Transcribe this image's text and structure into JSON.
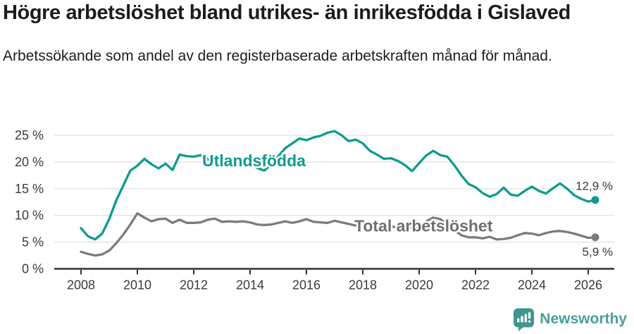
{
  "footer": {
    "brand": "Newsworthy"
  },
  "chart_data": {
    "type": "line",
    "title": "Högre arbetslöshet bland utrikes- än inrikesfödda i Gislaved",
    "subtitle": "Arbetssökande som andel av den registerbaserade arbetskraften månad för månad.",
    "xlabel": "",
    "ylabel": "",
    "x_unit": "decimal year (monthly data sampled quarterly)",
    "x_start": 2008,
    "x_step": 0.25,
    "xlim": [
      2007.05,
      2026.95
    ],
    "ylim": [
      0,
      29
    ],
    "grid": "horizontal",
    "legend_position": "inline-labels",
    "y_ticks": [
      {
        "value": 0,
        "label": "0 %"
      },
      {
        "value": 5,
        "label": "5 %"
      },
      {
        "value": 10,
        "label": "10 %"
      },
      {
        "value": 15,
        "label": "15 %"
      },
      {
        "value": 20,
        "label": "20 %"
      },
      {
        "value": 25,
        "label": "25 %"
      }
    ],
    "x_ticks": [
      {
        "value": 2008,
        "label": "2008"
      },
      {
        "value": 2010,
        "label": "2010"
      },
      {
        "value": 2012,
        "label": "2012"
      },
      {
        "value": 2014,
        "label": "2014"
      },
      {
        "value": 2016,
        "label": "2016"
      },
      {
        "value": 2018,
        "label": "2018"
      },
      {
        "value": 2020,
        "label": "2020"
      },
      {
        "value": 2022,
        "label": "2022"
      },
      {
        "value": 2024,
        "label": "2024"
      },
      {
        "value": 2026,
        "label": "2026"
      }
    ],
    "series": [
      {
        "name": "Utlandsfödda",
        "color": "#0e9b8f",
        "label_color": "#0e9b8f",
        "label_x": 2012.3,
        "label_y": 19.2,
        "end_dot": true,
        "end_label": "12,9 %",
        "end_label_side": "above",
        "values": [
          7.6,
          6.1,
          5.5,
          6.6,
          9.3,
          12.8,
          15.6,
          18.4,
          19.3,
          20.6,
          19.6,
          18.8,
          19.7,
          18.5,
          21.4,
          21.1,
          21.0,
          21.3,
          20.5,
          20.3,
          20.6,
          20.1,
          20.5,
          20.0,
          19.8,
          18.9,
          18.4,
          19.5,
          21.1,
          22.6,
          23.5,
          24.4,
          24.1,
          24.6,
          24.9,
          25.5,
          25.8,
          25.0,
          23.9,
          24.2,
          23.5,
          22.1,
          21.4,
          20.6,
          20.7,
          20.2,
          19.4,
          18.3,
          19.8,
          21.2,
          22.1,
          21.3,
          21.0,
          19.4,
          17.5,
          15.9,
          15.3,
          14.2,
          13.5,
          14.0,
          15.2,
          13.9,
          13.7,
          14.6,
          15.4,
          14.6,
          14.1,
          15.1,
          16.0,
          15.0,
          13.8,
          13.1,
          12.6,
          12.9
        ]
      },
      {
        "name": "Total arbetslöshet",
        "color": "#7b7b7b",
        "label_color": "#6f6f6f",
        "label_x": 2017.7,
        "label_y": 7.0,
        "end_dot": true,
        "end_label": "5,9 %",
        "end_label_side": "below",
        "values": [
          3.2,
          2.8,
          2.5,
          2.7,
          3.4,
          4.8,
          6.4,
          8.3,
          10.4,
          9.6,
          8.9,
          9.3,
          9.4,
          8.6,
          9.2,
          8.6,
          8.6,
          8.7,
          9.2,
          9.4,
          8.8,
          8.9,
          8.8,
          8.9,
          8.7,
          8.3,
          8.2,
          8.3,
          8.6,
          8.9,
          8.6,
          8.9,
          9.3,
          8.8,
          8.7,
          8.6,
          9.0,
          8.7,
          8.4,
          8.1,
          8.2,
          8.0,
          7.9,
          7.8,
          7.9,
          7.8,
          7.7,
          7.6,
          7.8,
          8.9,
          9.6,
          9.3,
          8.3,
          7.2,
          6.3,
          5.9,
          5.9,
          5.7,
          6.0,
          5.5,
          5.6,
          5.8,
          6.3,
          6.7,
          6.6,
          6.3,
          6.7,
          7.0,
          7.1,
          6.9,
          6.6,
          6.2,
          5.8,
          5.9
        ]
      }
    ]
  }
}
